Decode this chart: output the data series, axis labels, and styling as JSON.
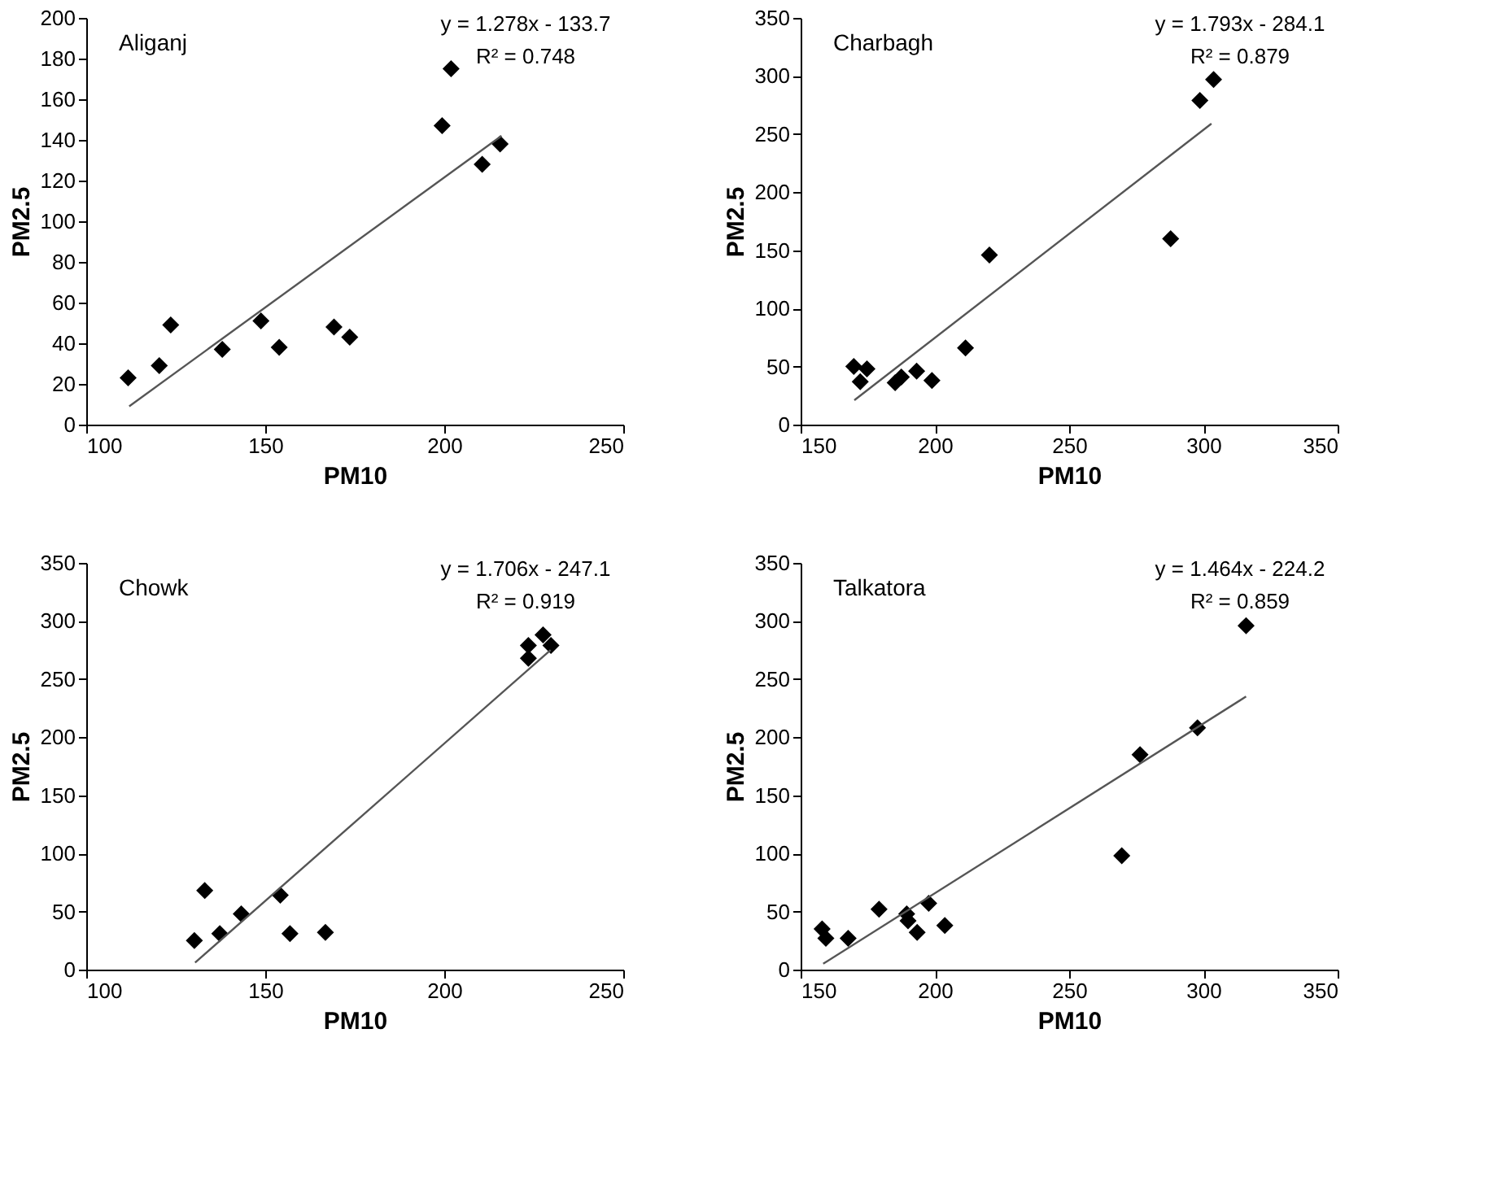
{
  "chart_data": [
    {
      "type": "scatter",
      "xlabel": "PM10",
      "ylabel": "PM2.5",
      "xlim": [
        100,
        250
      ],
      "xticks": [
        100,
        150,
        200,
        250
      ],
      "ylim": [
        0,
        200
      ],
      "yticks": [
        0,
        20,
        40,
        60,
        80,
        100,
        120,
        140,
        160,
        180,
        200
      ],
      "grid": false,
      "annotations": [
        "Aliganj",
        "y = 1.278x - 133.7",
        "R² = 0.748"
      ],
      "series": [
        {
          "type": "scatter",
          "marker": "diamond",
          "color": "#000000",
          "x": [
            111.7,
            120.4,
            123.6,
            138,
            148.8,
            153.9,
            169.2,
            173.6,
            199.4,
            201.9,
            210.6,
            215.6
          ],
          "values": [
            23,
            29,
            49,
            37,
            51,
            38,
            48,
            43,
            147,
            175,
            128,
            138
          ]
        },
        {
          "type": "line",
          "color": "#555555",
          "x": [
            112,
            216
          ],
          "values": [
            9,
            142
          ]
        }
      ]
    },
    {
      "type": "scatter",
      "xlabel": "PM10",
      "ylabel": "PM2.5",
      "xlim": [
        150,
        350
      ],
      "xticks": [
        150,
        200,
        250,
        300,
        350
      ],
      "ylim": [
        0,
        350
      ],
      "yticks": [
        0,
        50,
        100,
        150,
        200,
        250,
        300,
        350
      ],
      "grid": false,
      "annotations": [
        "Charbagh",
        "y = 1.793x - 284.1",
        "R² = 0.879"
      ],
      "series": [
        {
          "type": "scatter",
          "marker": "diamond",
          "color": "#000000",
          "x": [
            169.8,
            172.2,
            174.7,
            185.2,
            187.5,
            193.2,
            198.9,
            211.4,
            220.3,
            287.8,
            298.7,
            303.8
          ],
          "values": [
            50,
            37,
            48,
            36,
            41,
            46,
            38,
            66,
            146,
            160,
            279,
            297
          ]
        },
        {
          "type": "line",
          "color": "#555555",
          "x": [
            170,
            303
          ],
          "values": [
            21,
            259
          ]
        }
      ]
    },
    {
      "type": "scatter",
      "xlabel": "PM10",
      "ylabel": "PM2.5",
      "xlim": [
        100,
        250
      ],
      "xticks": [
        100,
        150,
        200,
        250
      ],
      "ylim": [
        0,
        350
      ],
      "yticks": [
        0,
        50,
        100,
        150,
        200,
        250,
        300,
        350
      ],
      "grid": false,
      "annotations": [
        "Chowk",
        "y = 1.706x - 247.1",
        "R² = 0.919"
      ],
      "series": [
        {
          "type": "scatter",
          "marker": "diamond",
          "color": "#000000",
          "x": [
            130.2,
            133.1,
            137.3,
            143.3,
            154.2,
            156.9,
            166.8,
            223.5,
            223.5,
            227.6,
            229.8
          ],
          "values": [
            25,
            68,
            31,
            48,
            64,
            31,
            32,
            268,
            279,
            288,
            279
          ]
        },
        {
          "type": "line",
          "color": "#555555",
          "x": [
            130.4,
            229.7
          ],
          "values": [
            6,
            275
          ]
        }
      ]
    },
    {
      "type": "scatter",
      "xlabel": "PM10",
      "ylabel": "PM2.5",
      "xlim": [
        150,
        350
      ],
      "xticks": [
        150,
        200,
        250,
        300,
        350
      ],
      "ylim": [
        0,
        350
      ],
      "yticks": [
        0,
        50,
        100,
        150,
        200,
        250,
        300,
        350
      ],
      "grid": false,
      "annotations": [
        "Talkatora",
        "y = 1.464x - 224.2",
        "R² = 0.859"
      ],
      "series": [
        {
          "type": "scatter",
          "marker": "diamond",
          "color": "#000000",
          "x": [
            158,
            159.4,
            167.7,
            179.2,
            189.5,
            190,
            193.4,
            197.7,
            203.7,
            269.6,
            276.4,
            297.8,
            315.9
          ],
          "values": [
            35,
            27,
            27,
            52,
            48,
            42,
            32,
            57,
            38,
            98,
            185,
            208,
            296
          ]
        },
        {
          "type": "line",
          "color": "#555555",
          "x": [
            158.4,
            315.9
          ],
          "values": [
            5,
            235
          ]
        }
      ]
    }
  ]
}
